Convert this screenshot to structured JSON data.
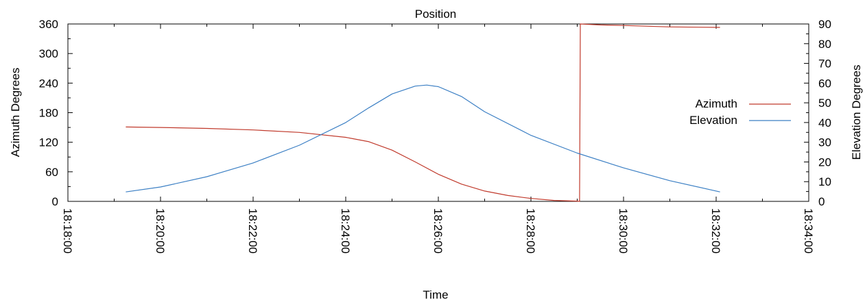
{
  "chart_data": {
    "type": "line",
    "title": "Position",
    "xlabel": "Time",
    "ylabel_left": "Azimuth Degrees",
    "ylabel_right": "Elevation Degrees",
    "xlim": [
      "18:18:00",
      "18:34:00"
    ],
    "x_ticks": [
      "18:18:00",
      "18:20:00",
      "18:22:00",
      "18:24:00",
      "18:26:00",
      "18:28:00",
      "18:30:00",
      "18:32:00",
      "18:34:00"
    ],
    "ylim_left": [
      0,
      360
    ],
    "y_ticks_left": [
      "0",
      "60",
      "120",
      "180",
      "240",
      "300",
      "360"
    ],
    "ylim_right": [
      0,
      90
    ],
    "y_ticks_right": [
      "0",
      "10",
      "20",
      "30",
      "40",
      "50",
      "60",
      "70",
      "80",
      "90"
    ],
    "grid": false,
    "legend_position": "right",
    "series": [
      {
        "name": "Azimuth",
        "axis": "left",
        "color": "#c0392b",
        "points": [
          [
            "18:19:15",
            151
          ],
          [
            "18:20:00",
            150
          ],
          [
            "18:21:00",
            148
          ],
          [
            "18:22:00",
            145
          ],
          [
            "18:23:00",
            140
          ],
          [
            "18:24:00",
            130
          ],
          [
            "18:24:30",
            121
          ],
          [
            "18:25:00",
            104
          ],
          [
            "18:25:30",
            80
          ],
          [
            "18:26:00",
            55
          ],
          [
            "18:26:30",
            35
          ],
          [
            "18:27:00",
            21
          ],
          [
            "18:27:30",
            12
          ],
          [
            "18:28:00",
            6
          ],
          [
            "18:28:30",
            2
          ],
          [
            "18:29:00",
            0.5
          ],
          [
            "18:29:03",
            0
          ],
          [
            "18:29:04",
            360
          ],
          [
            "18:29:30",
            358
          ],
          [
            "18:30:00",
            357
          ],
          [
            "18:31:00",
            354
          ],
          [
            "18:32:05",
            353
          ]
        ]
      },
      {
        "name": "Elevation",
        "axis": "right",
        "color": "#3b7fc4",
        "points": [
          [
            "18:19:15",
            4.8
          ],
          [
            "18:20:00",
            7.3
          ],
          [
            "18:21:00",
            12.5
          ],
          [
            "18:22:00",
            19.5
          ],
          [
            "18:23:00",
            28.5
          ],
          [
            "18:24:00",
            40
          ],
          [
            "18:24:30",
            47.5
          ],
          [
            "18:25:00",
            54.5
          ],
          [
            "18:25:30",
            58.5
          ],
          [
            "18:25:45",
            59
          ],
          [
            "18:26:00",
            58.2
          ],
          [
            "18:26:30",
            53.2
          ],
          [
            "18:27:00",
            45.5
          ],
          [
            "18:28:00",
            33.5
          ],
          [
            "18:29:00",
            24.5
          ],
          [
            "18:30:00",
            17
          ],
          [
            "18:31:00",
            10.5
          ],
          [
            "18:32:05",
            4.8
          ]
        ]
      }
    ]
  }
}
